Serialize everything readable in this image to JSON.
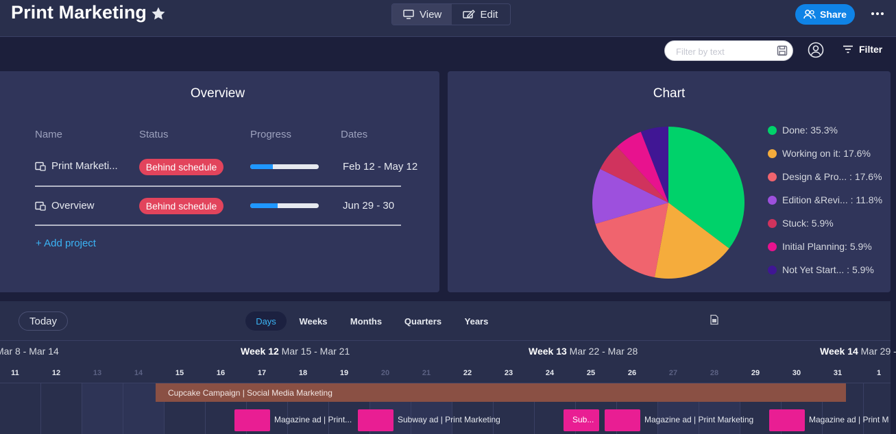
{
  "header": {
    "title": "Print Marketing",
    "view_label": "View",
    "edit_label": "Edit",
    "share_label": "Share"
  },
  "toolbar": {
    "filter_placeholder": "Filter by text",
    "filter_label": "Filter"
  },
  "overview": {
    "title": "Overview",
    "columns": [
      "Name",
      "Status",
      "Progress",
      "Dates"
    ],
    "rows": [
      {
        "name": "Print Marketi...",
        "status": "Behind schedule",
        "progress": 0.33,
        "dates": "Feb 12 - May 12"
      },
      {
        "name": "Overview",
        "status": "Behind schedule",
        "progress": 0.4,
        "dates": "Jun 29 - 30"
      }
    ],
    "add_project": "+ Add project",
    "status_color": "#e2445c"
  },
  "chart": {
    "title": "Chart"
  },
  "chart_data": {
    "type": "pie",
    "title": "Chart",
    "slices": [
      {
        "label": "Done",
        "value": 35.3,
        "color": "#00d26a",
        "legend": "Done: 35.3%"
      },
      {
        "label": "Working on it",
        "value": 17.6,
        "color": "#f5ac3c",
        "legend": "Working on it: 17.6%"
      },
      {
        "label": "Design & Pro...",
        "value": 17.6,
        "color": "#f0646e",
        "legend": "Design & Pro... : 17.6%"
      },
      {
        "label": "Edition &Revi...",
        "value": 11.8,
        "color": "#9d50dd",
        "legend": "Edition &Revi... : 11.8%"
      },
      {
        "label": "Stuck",
        "value": 5.9,
        "color": "#d0335d",
        "legend": "Stuck: 5.9%"
      },
      {
        "label": "Initial Planning",
        "value": 5.9,
        "color": "#e8128e",
        "legend": "Initial Planning: 5.9%"
      },
      {
        "label": "Not Yet Start...",
        "value": 5.9,
        "color": "#401694",
        "legend": "Not Yet Start... : 5.9%"
      }
    ]
  },
  "timeline": {
    "today_label": "Today",
    "scales": [
      "Days",
      "Weeks",
      "Months",
      "Quarters",
      "Years"
    ],
    "active_scale": "Days",
    "weeks": [
      {
        "bold": "",
        "range": "Mar 8 - Mar 14"
      },
      {
        "bold": "Week 12",
        "range": " Mar 15 - Mar 21"
      },
      {
        "bold": "Week 13",
        "range": " Mar 22 - Mar 28"
      },
      {
        "bold": "Week 14",
        "range": " Mar 29 - "
      }
    ],
    "days": [
      "11",
      "12",
      "13",
      "14",
      "15",
      "16",
      "17",
      "18",
      "19",
      "20",
      "21",
      "22",
      "23",
      "24",
      "25",
      "26",
      "27",
      "28",
      "29",
      "30",
      "31",
      "1"
    ],
    "weekend_days": [
      "13",
      "14",
      "20",
      "21",
      "27",
      "28"
    ],
    "campaign": "Cupcake Campaign | Social Media Marketing",
    "items": [
      {
        "inside": "",
        "label": "Magazine ad | Print..."
      },
      {
        "inside": "",
        "label": "Subway ad | Print Marketing"
      },
      {
        "inside": "Sub...",
        "label": ""
      },
      {
        "inside": "",
        "label": "Magazine ad | Print Marketing"
      },
      {
        "inside": "",
        "label": "Magazine ad | Print M"
      }
    ],
    "item_color": "#e91e93"
  }
}
